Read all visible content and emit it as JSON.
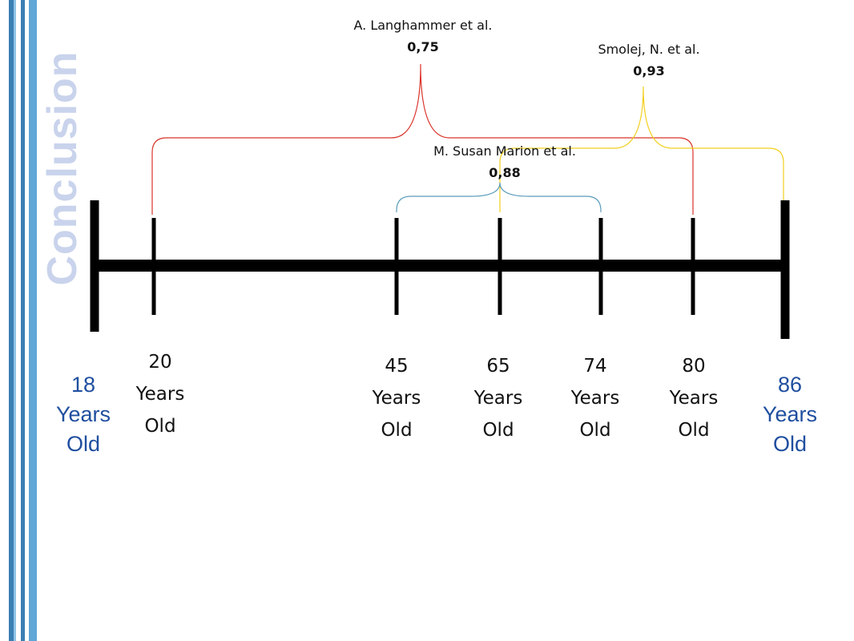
{
  "title": "Conclusion",
  "colors": {
    "stripe_dark": "#3a7fb3",
    "stripe_light": "#5fa7d6",
    "title": "#c9d3ec",
    "end_label": "#1f4e9f",
    "langhammer": "#d9342b",
    "marion": "#5a9bbb",
    "smolej": "#f2cf1d"
  },
  "ages": [
    {
      "value": 18,
      "line1": "18",
      "line2": "Years",
      "line3": "Old",
      "emphasis": true
    },
    {
      "value": 20,
      "line1": "20",
      "line2": "Years",
      "line3": "Old",
      "emphasis": false
    },
    {
      "value": 45,
      "line1": "45",
      "line2": "Years",
      "line3": "Old",
      "emphasis": false
    },
    {
      "value": 65,
      "line1": "65",
      "line2": "Years",
      "line3": "Old",
      "emphasis": false
    },
    {
      "value": 74,
      "line1": "74",
      "line2": "Years",
      "line3": "Old",
      "emphasis": false
    },
    {
      "value": 80,
      "line1": "80",
      "line2": "Years",
      "line3": "Old",
      "emphasis": false
    },
    {
      "value": 86,
      "line1": "86",
      "line2": "Years",
      "line3": "Old",
      "emphasis": true
    }
  ],
  "studies": [
    {
      "author": "A. Langhammer et al.",
      "value": "0,75",
      "range": [
        20,
        80
      ],
      "color": "#d9342b"
    },
    {
      "author": "Smolej, N. et al.",
      "value": "0,93",
      "range": [
        65,
        86
      ],
      "color": "#f2cf1d"
    },
    {
      "author": "M. Susan Marion et al.",
      "value": "0,88",
      "range": [
        45,
        74
      ],
      "color": "#5a9bbb"
    }
  ]
}
